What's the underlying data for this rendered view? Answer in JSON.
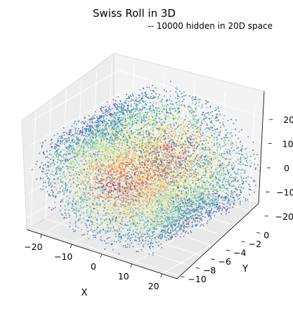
{
  "chart_data": {
    "type": "scatter",
    "title": "Swiss Roll in 3D",
    "subtitle": "-- 10000 hidden in 20D space",
    "xlabel": "X",
    "ylabel": "Y",
    "zlabel": "",
    "n_points": 10000,
    "xlim": [
      -25,
      25
    ],
    "ylim": [
      -10.5,
      1
    ],
    "zlim": [
      -25,
      25
    ],
    "x_ticks": [
      -20,
      -10,
      0,
      10,
      20
    ],
    "y_ticks": [
      -10,
      -8,
      -6,
      -4,
      -2,
      0
    ],
    "z_ticks": [
      -20,
      -10,
      0,
      10,
      20
    ],
    "colormap": "Spectral",
    "colormap_stops": [
      "#5e4fa2",
      "#3288bd",
      "#66c2a5",
      "#abdda4",
      "#e6f598",
      "#fee08b",
      "#fdae61",
      "#f46d43",
      "#d53e4f",
      "#9e0142"
    ],
    "color_encodes": "position along the roll (outer edge blue, inner core red)",
    "pane_color": "#f2f2f2",
    "grid": true
  }
}
